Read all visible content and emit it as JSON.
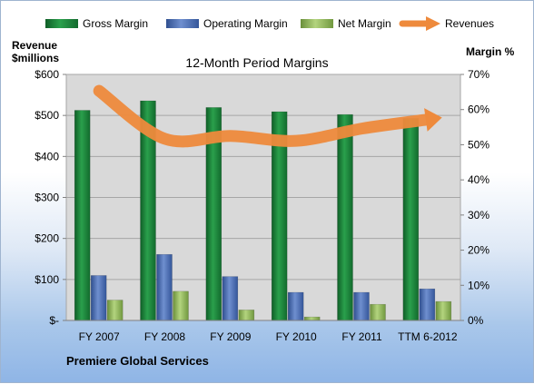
{
  "chart_data": {
    "type": "bar",
    "title": "12-Month Period Margins",
    "left_axis_label": [
      "Revenue",
      "$millions"
    ],
    "right_axis_label": "Margin %",
    "company": "Premiere Global Services",
    "categories": [
      "FY 2007",
      "FY 2008",
      "FY 2009",
      "FY 2010",
      "FY 2011",
      "TTM 6-2012"
    ],
    "left_ticks": [
      "$-",
      "$100",
      "$200",
      "$300",
      "$400",
      "$500",
      "$600"
    ],
    "right_ticks": [
      "0%",
      "10%",
      "20%",
      "30%",
      "40%",
      "50%",
      "60%",
      "70%"
    ],
    "left_range": [
      0,
      600
    ],
    "right_range": [
      0,
      70
    ],
    "series": [
      {
        "name": "Gross Margin",
        "axis": "right",
        "unit": "%",
        "values": [
          59.8,
          62.5,
          60.6,
          59.4,
          58.6,
          57.5
        ]
      },
      {
        "name": "Operating Margin",
        "axis": "right",
        "unit": "%",
        "values": [
          12.8,
          18.8,
          12.5,
          8.0,
          8.0,
          9.0
        ]
      },
      {
        "name": "Net Margin",
        "axis": "right",
        "unit": "%",
        "values": [
          5.8,
          8.3,
          3.0,
          1.0,
          4.6,
          5.4
        ]
      },
      {
        "name": "Revenues",
        "type": "line",
        "axis": "left",
        "values": [
          560,
          443,
          450,
          438,
          468,
          490
        ]
      }
    ],
    "legend_position": "top",
    "grid": "horizontal"
  },
  "colors": {
    "gross": "#1f8a3c",
    "operating": "#4b6fb5",
    "net": "#8db85a",
    "revenues": "#ee8a3c",
    "plot_bg": "#d8d8d8"
  }
}
